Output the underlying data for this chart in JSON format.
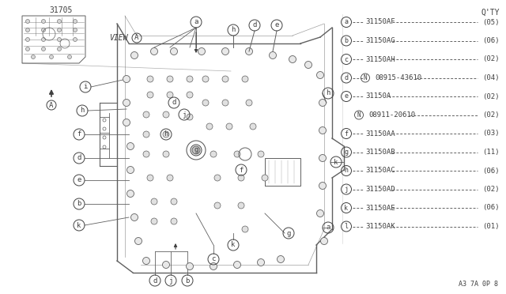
{
  "bg_color": "#ffffff",
  "line_color": "#606060",
  "text_color": "#404040",
  "part_number": "31705",
  "view_label": "VIEW",
  "qty_header": "Q'TY",
  "diagram_code": "A3 7A 0P 8",
  "parts": [
    {
      "label": "a",
      "part": "31150AF",
      "qty": "(05)"
    },
    {
      "label": "b",
      "part": "31150AG",
      "qty": "(06)"
    },
    {
      "label": "c",
      "part": "31150AH",
      "qty": "(02)"
    },
    {
      "label": "d",
      "part_n": "N",
      "part": "08915-43610",
      "qty": "(04)"
    },
    {
      "label": "e",
      "part": "31150A",
      "qty": "(02)",
      "sub_n": "N",
      "sub_part": "08911-20610",
      "sub_qty": "(02)"
    },
    {
      "label": "f",
      "part": "31150AA",
      "qty": "(03)"
    },
    {
      "label": "g",
      "part": "31150AB",
      "qty": "(11)"
    },
    {
      "label": "h",
      "part": "31150AC",
      "qty": "(06)"
    },
    {
      "label": "j",
      "part": "31150AD",
      "qty": "(02)"
    },
    {
      "label": "k",
      "part": "31150AE",
      "qty": "(06)"
    },
    {
      "label": "l",
      "part": "31150AK",
      "qty": "(01)"
    }
  ]
}
